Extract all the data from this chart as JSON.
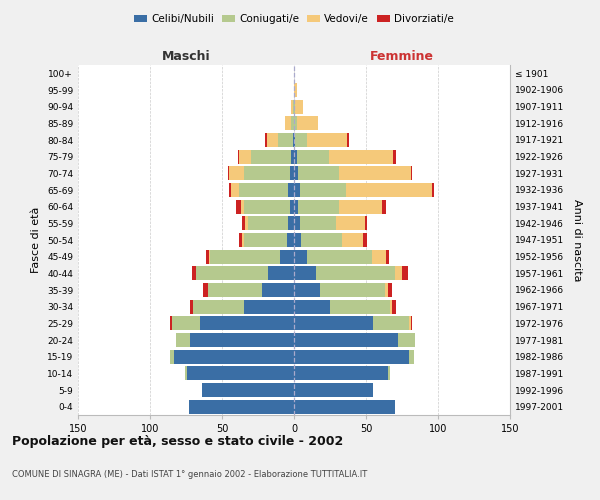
{
  "age_groups": [
    "0-4",
    "5-9",
    "10-14",
    "15-19",
    "20-24",
    "25-29",
    "30-34",
    "35-39",
    "40-44",
    "45-49",
    "50-54",
    "55-59",
    "60-64",
    "65-69",
    "70-74",
    "75-79",
    "80-84",
    "85-89",
    "90-94",
    "95-99",
    "100+"
  ],
  "birth_years": [
    "1997-2001",
    "1992-1996",
    "1987-1991",
    "1982-1986",
    "1977-1981",
    "1972-1976",
    "1967-1971",
    "1962-1966",
    "1957-1961",
    "1952-1956",
    "1947-1951",
    "1942-1946",
    "1937-1941",
    "1932-1936",
    "1927-1931",
    "1922-1926",
    "1917-1921",
    "1912-1916",
    "1907-1911",
    "1902-1906",
    "≤ 1901"
  ],
  "maschi": {
    "celibi": [
      73,
      64,
      74,
      83,
      72,
      65,
      35,
      22,
      18,
      10,
      5,
      4,
      3,
      4,
      3,
      2,
      1,
      0,
      0,
      0,
      0
    ],
    "coniugati": [
      0,
      0,
      2,
      3,
      10,
      20,
      35,
      38,
      50,
      48,
      30,
      28,
      32,
      34,
      32,
      28,
      10,
      2,
      1,
      0,
      0
    ],
    "vedovi": [
      0,
      0,
      0,
      0,
      0,
      0,
      0,
      0,
      0,
      1,
      1,
      2,
      2,
      6,
      10,
      8,
      8,
      4,
      1,
      0,
      0
    ],
    "divorziati": [
      0,
      0,
      0,
      0,
      0,
      1,
      2,
      3,
      3,
      2,
      2,
      2,
      3,
      1,
      1,
      1,
      1,
      0,
      0,
      0,
      0
    ]
  },
  "femmine": {
    "nubili": [
      70,
      55,
      65,
      80,
      72,
      55,
      25,
      18,
      15,
      9,
      5,
      4,
      3,
      4,
      3,
      2,
      1,
      0,
      0,
      0,
      0
    ],
    "coniugate": [
      0,
      0,
      2,
      3,
      12,
      25,
      42,
      45,
      55,
      45,
      28,
      25,
      28,
      32,
      28,
      22,
      8,
      2,
      1,
      0,
      0
    ],
    "vedove": [
      0,
      0,
      0,
      0,
      0,
      1,
      1,
      2,
      5,
      10,
      15,
      20,
      30,
      60,
      50,
      45,
      28,
      15,
      5,
      2,
      0
    ],
    "divorziate": [
      0,
      0,
      0,
      0,
      0,
      1,
      3,
      3,
      4,
      2,
      3,
      2,
      3,
      1,
      1,
      2,
      1,
      0,
      0,
      0,
      0
    ]
  },
  "colors": {
    "celibi": "#3a6ea5",
    "coniugati": "#b5c98e",
    "vedovi": "#f5c97a",
    "divorziati": "#cc2222"
  },
  "xlim": 150,
  "title": "Popolazione per età, sesso e stato civile - 2002",
  "subtitle": "COMUNE DI SINAGRA (ME) - Dati ISTAT 1° gennaio 2002 - Elaborazione TUTTITALIA.IT",
  "ylabel_left": "Fasce di età",
  "ylabel_right": "Anni di nascita",
  "xlabel_maschi": "Maschi",
  "xlabel_femmine": "Femmine",
  "legend_labels": [
    "Celibi/Nubili",
    "Coniugati/e",
    "Vedovi/e",
    "Divorziati/e"
  ],
  "bg_color": "#f0f0f0",
  "plot_bg": "#ffffff"
}
